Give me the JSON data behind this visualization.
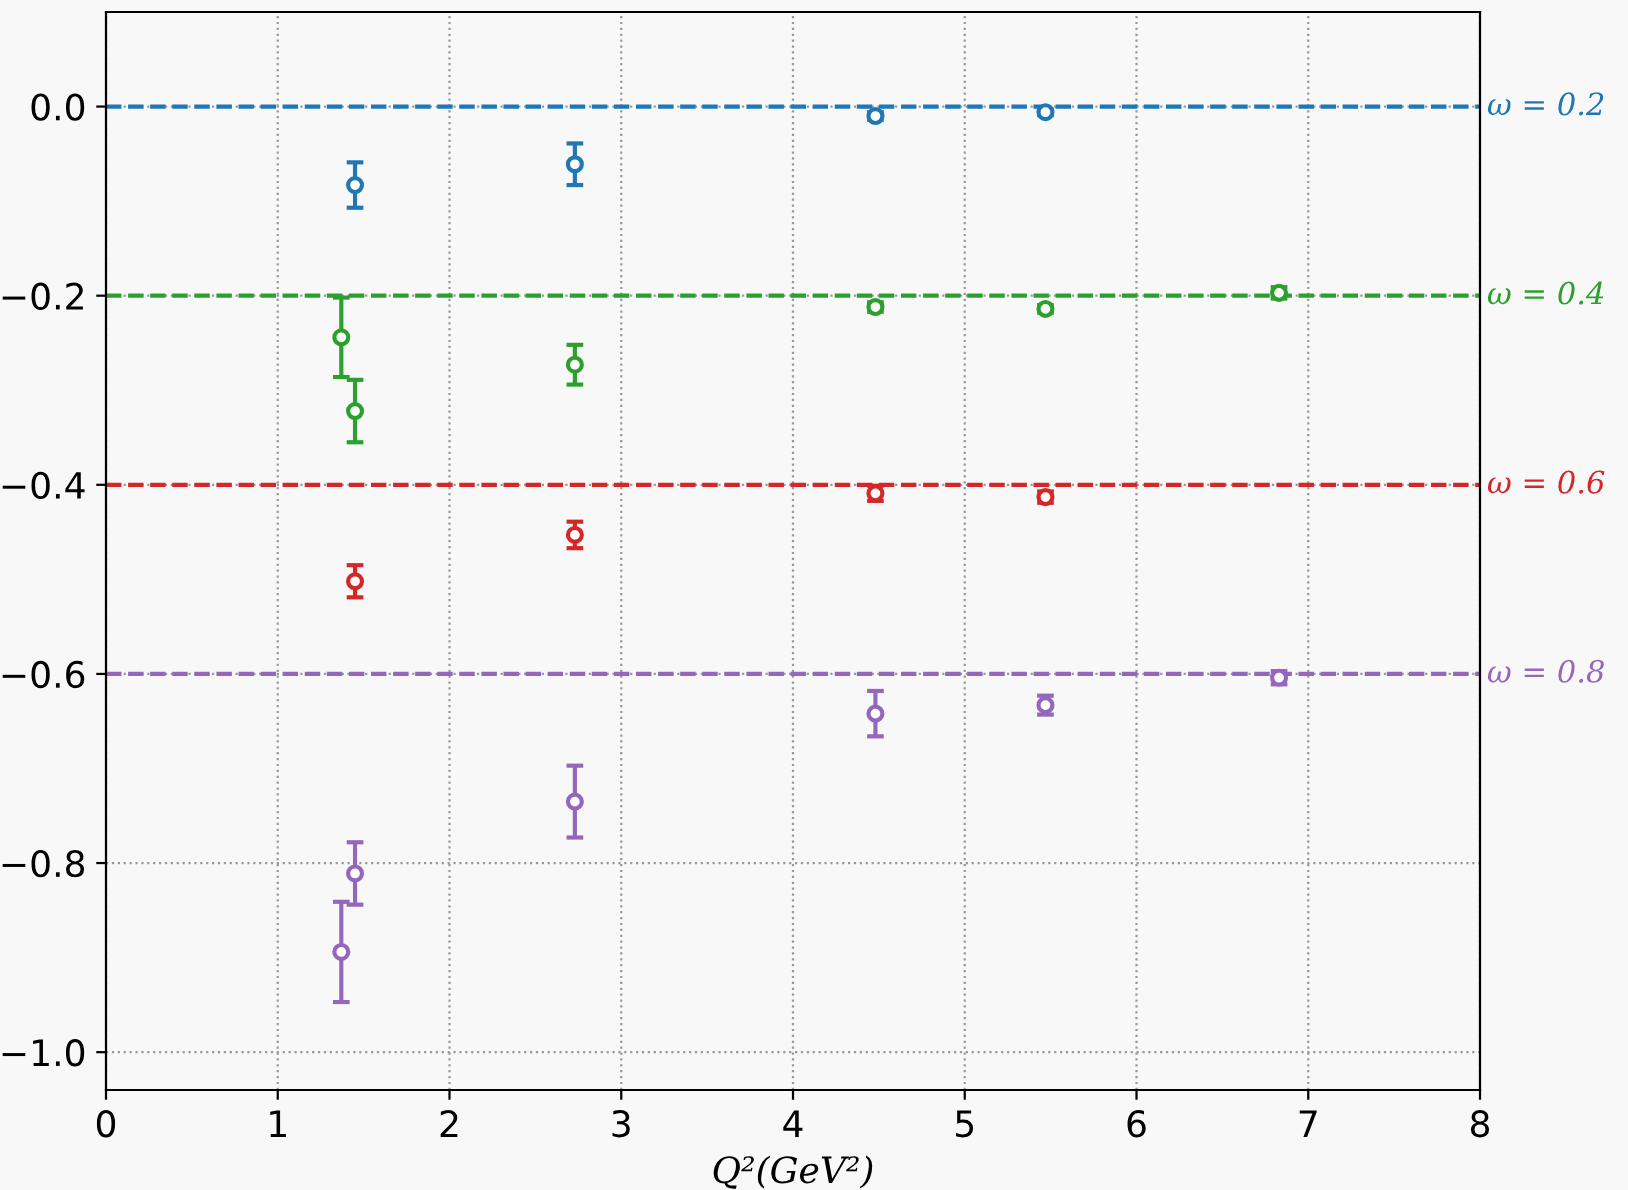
{
  "chart_data": {
    "type": "scatter",
    "xlabel": "Q²(GeV²)",
    "xlim": [
      0,
      8
    ],
    "ylim": [
      -1.04,
      0.1
    ],
    "xticks": [
      0,
      1,
      2,
      3,
      4,
      5,
      6,
      7,
      8
    ],
    "yticks": [
      {
        "value": 0,
        "label": "0.0"
      },
      {
        "value": -0.2,
        "label": "−0.2"
      },
      {
        "value": -0.4,
        "label": "−0.4"
      },
      {
        "value": -0.6,
        "label": "−0.6"
      },
      {
        "value": -0.8,
        "label": "−0.8"
      },
      {
        "value": -1.0,
        "label": "−1.0"
      }
    ],
    "grid": true,
    "marker": "circle",
    "legend": false,
    "series": [
      {
        "name": "ω = 0.2",
        "color": "#1f77b4",
        "x": [
          1.45,
          2.73,
          4.48,
          5.47
        ],
        "values": [
          -0.083,
          -0.061,
          -0.01,
          -0.006
        ],
        "errors": [
          0.024,
          0.022,
          0.004,
          0.003
        ]
      },
      {
        "name": "ω = 0.4",
        "color": "#2ca02c",
        "x": [
          1.37,
          1.45,
          2.73,
          4.48,
          5.47,
          6.83
        ],
        "values": [
          -0.244,
          -0.322,
          -0.273,
          -0.212,
          -0.214,
          -0.197
        ],
        "errors": [
          0.042,
          0.033,
          0.021,
          0.005,
          0.004,
          0.006
        ]
      },
      {
        "name": "ω = 0.6",
        "color": "#d62728",
        "x": [
          1.45,
          2.73,
          4.48,
          5.47
        ],
        "values": [
          -0.502,
          -0.453,
          -0.409,
          -0.413
        ],
        "errors": [
          0.017,
          0.014,
          0.008,
          0.006
        ]
      },
      {
        "name": "ω = 0.8",
        "color": "#9467bd",
        "x": [
          1.37,
          1.45,
          2.73,
          4.48,
          5.47,
          6.83
        ],
        "values": [
          -0.894,
          -0.811,
          -0.735,
          -0.642,
          -0.633,
          -0.604
        ],
        "errors": [
          0.053,
          0.033,
          0.038,
          0.024,
          0.01,
          0.007
        ]
      }
    ],
    "ref_lines": [
      {
        "axis": "y",
        "value": 0,
        "color": "#1f77b4",
        "line_style": "dashed"
      },
      {
        "axis": "y",
        "value": -0.2,
        "color": "#2ca02c",
        "line_style": "dashed"
      },
      {
        "axis": "y",
        "value": -0.4,
        "color": "#d62728",
        "line_style": "dashed"
      },
      {
        "axis": "y",
        "value": -0.6,
        "color": "#9467bd",
        "line_style": "dashed"
      }
    ]
  }
}
